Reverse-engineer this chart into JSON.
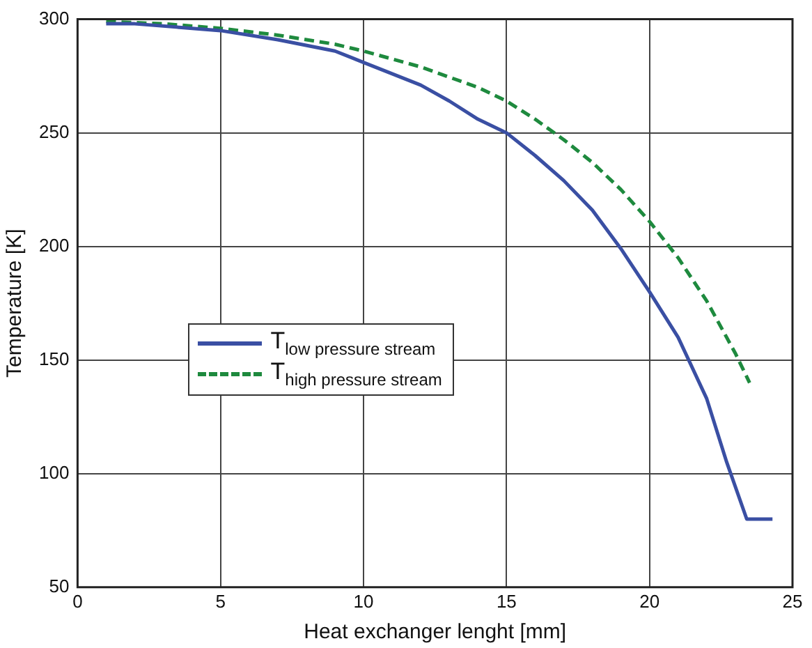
{
  "chart_data": {
    "type": "line",
    "xlabel": "Heat exchanger lenght [mm]",
    "ylabel": "Temperature [K]",
    "xlim": [
      0,
      25
    ],
    "xticks": [
      0,
      5,
      10,
      15,
      20,
      25
    ],
    "ylim": [
      50,
      300
    ],
    "yticks": [
      50,
      100,
      150,
      200,
      250,
      300
    ],
    "grid": true,
    "legend": "left",
    "marker": "none",
    "series": [
      {
        "name": "T$_{low pressure stream}$",
        "color": "#3a4fa3",
        "line_style": "solid",
        "x": [
          1,
          2,
          5,
          7,
          9,
          10,
          12,
          13,
          14,
          15,
          16,
          17,
          18,
          19,
          20,
          21,
          22,
          22.7,
          23.4,
          24.3
        ],
        "values": [
          298,
          298,
          295,
          291,
          286,
          281,
          271,
          264,
          256,
          250,
          240,
          229,
          216,
          199,
          180,
          160,
          133,
          105,
          80,
          80
        ]
      },
      {
        "name": "T$_{high pressure stream}$",
        "color": "#1e8a3e",
        "line_style": "dashed",
        "x": [
          1,
          3,
          5,
          7,
          9,
          10,
          12,
          14,
          15,
          16,
          17,
          18,
          19,
          20,
          21,
          22,
          23,
          23.5
        ],
        "values": [
          299,
          298,
          296,
          293,
          289,
          286,
          279,
          270,
          264,
          256,
          247,
          237,
          225,
          211,
          195,
          176,
          153,
          140
        ]
      }
    ]
  }
}
